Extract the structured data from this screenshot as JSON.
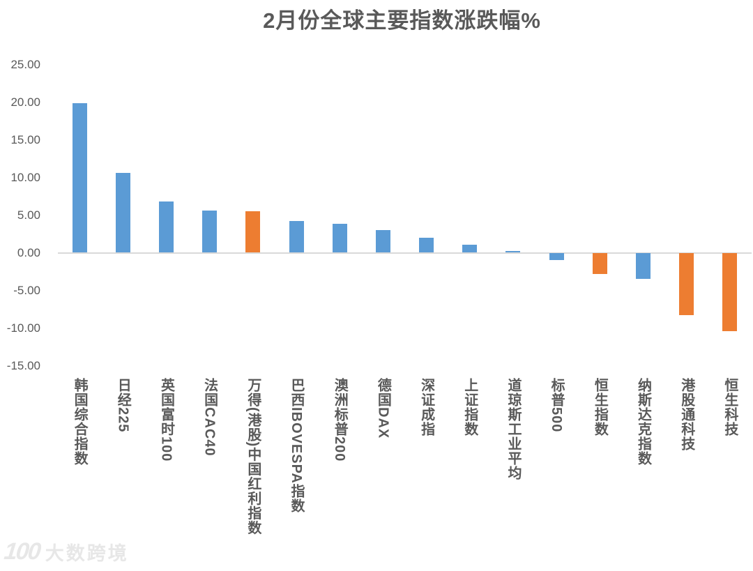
{
  "page": {
    "background": "#ffffff"
  },
  "chart_data": {
    "type": "bar",
    "title": "2月份全球主要指数涨跌幅%",
    "categories": [
      "韩国综合指数",
      "日经225",
      "英国富时100",
      "法国CAC40",
      "万得(港股)中国红利指数",
      "巴西IBOVESPA指数",
      "澳洲标普200",
      "德国DAX",
      "深证成指",
      "上证指数",
      "道琼斯工业平均",
      "标普500",
      "恒生指数",
      "纳斯达克指数",
      "港股通科技",
      "恒生科技"
    ],
    "values": [
      19.9,
      10.6,
      6.8,
      5.6,
      5.5,
      4.2,
      3.8,
      3.0,
      2.0,
      1.1,
      0.2,
      -1.0,
      -2.8,
      -3.5,
      -8.3,
      -10.4
    ],
    "bar_colors": [
      "#5B9BD5",
      "#5B9BD5",
      "#5B9BD5",
      "#5B9BD5",
      "#ED7D31",
      "#5B9BD5",
      "#5B9BD5",
      "#5B9BD5",
      "#5B9BD5",
      "#5B9BD5",
      "#5B9BD5",
      "#5B9BD5",
      "#ED7D31",
      "#5B9BD5",
      "#ED7D31",
      "#ED7D31"
    ],
    "ylim": [
      -15,
      25
    ],
    "ytick_step": 5,
    "ytick_labels": [
      "25.00",
      "20.00",
      "15.00",
      "10.00",
      "5.00",
      "0.00",
      "-5.00",
      "-10.00",
      "-15.00"
    ],
    "xlabel": "",
    "ylabel": "",
    "grid": false,
    "legend": "none",
    "colors": {
      "bar_default": "#5B9BD5",
      "bar_highlight": "#ED7D31",
      "axis_line": "#D9D9D9",
      "text": "#595959",
      "watermark": "#E7E7E7"
    }
  },
  "watermark": {
    "logo": "100",
    "text": "大数跨境"
  }
}
